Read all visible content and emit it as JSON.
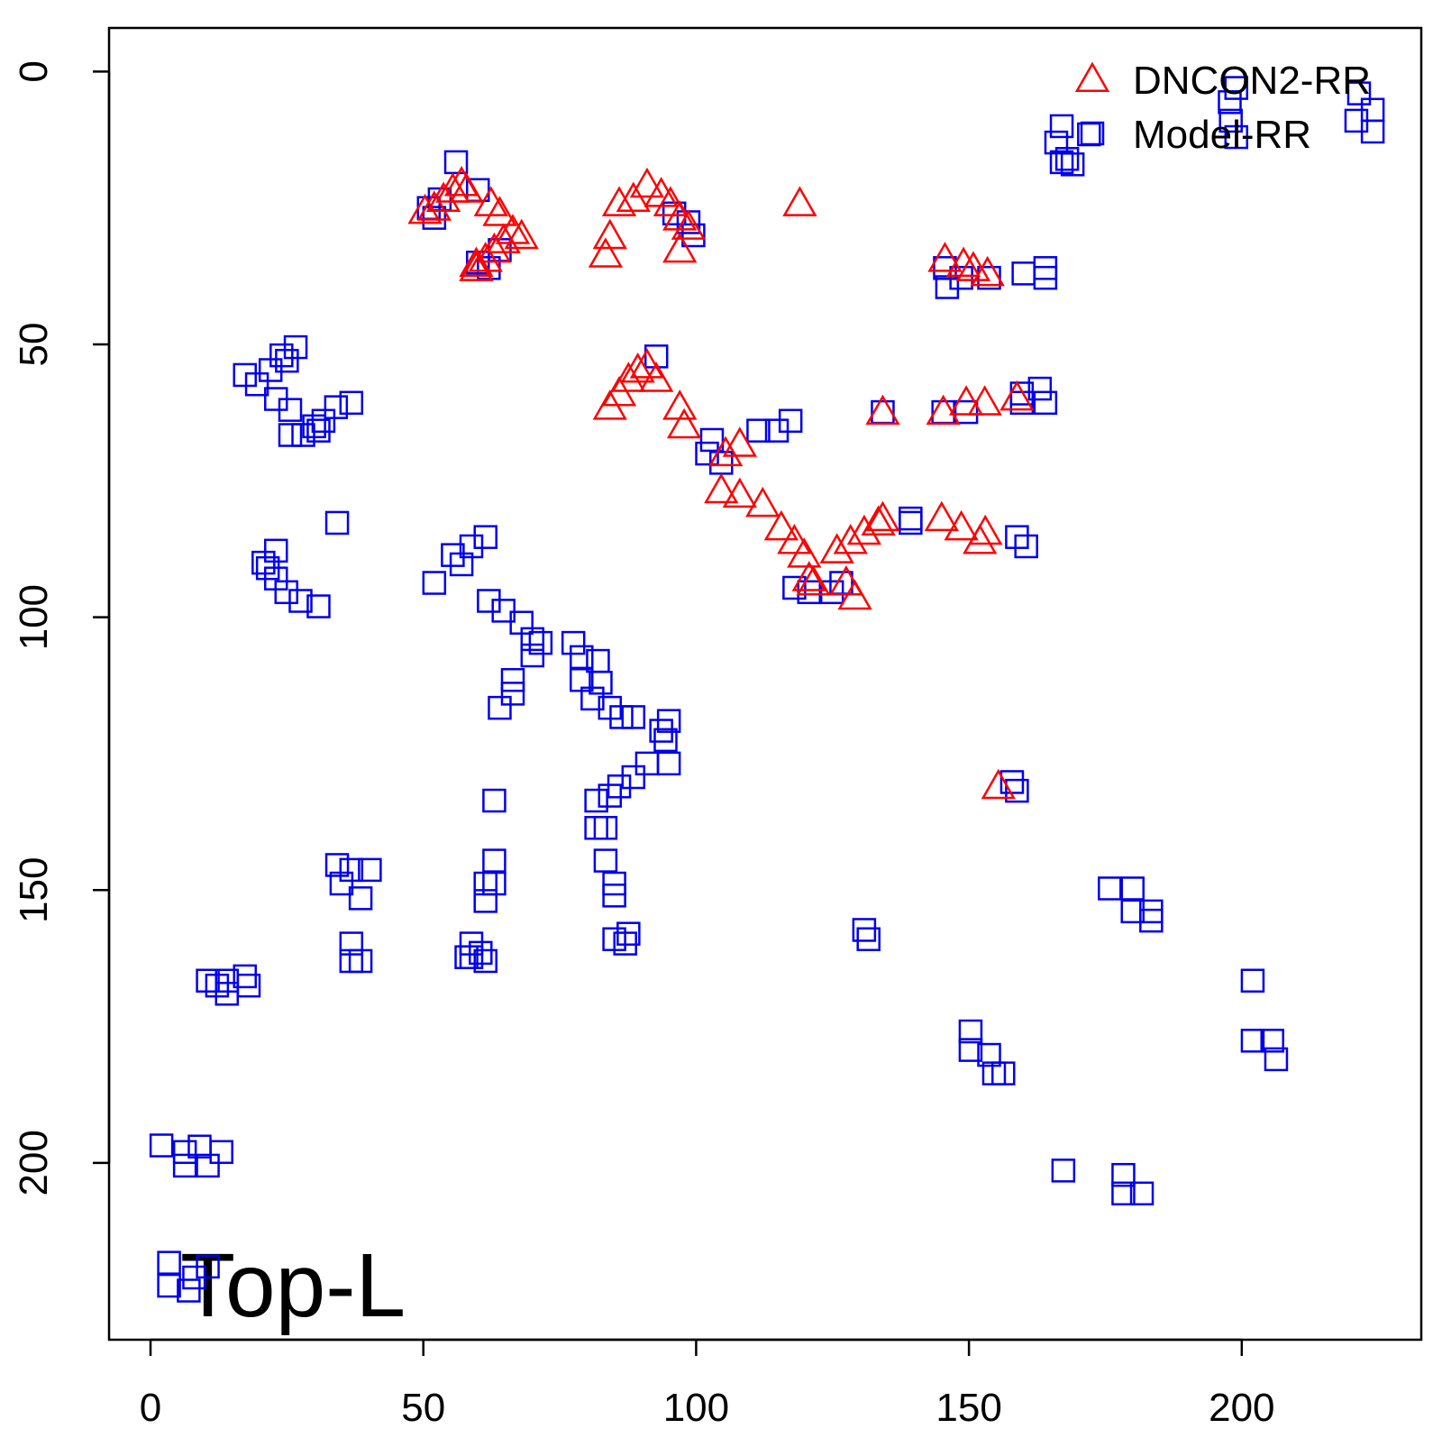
{
  "chart_data": {
    "type": "scatter",
    "annotation": "Top-L",
    "xlim": [
      -7.6,
      232.9
    ],
    "ylim": [
      -8,
      232.4
    ],
    "y_reversed": true,
    "xticks": [
      0,
      50,
      100,
      150,
      200
    ],
    "yticks": [
      0,
      50,
      100,
      150,
      200
    ],
    "grid": false,
    "legend": "topright",
    "series": [
      {
        "name": "DNCON2-RR",
        "color": "#ff0000",
        "marker": "triangle",
        "x": [
          50.3,
          52,
          53.7,
          55.4,
          57,
          57.9,
          62.4,
          64,
          59.7,
          61.4,
          63,
          64.7,
          66.4,
          68,
          59.7,
          83.4,
          84.2,
          85.9,
          88.5,
          91,
          93.6,
          95.3,
          97,
          98.6,
          97,
          119,
          145.6,
          149,
          150.8,
          153.4,
          84.2,
          85.9,
          87.6,
          89.3,
          91,
          92.7,
          97,
          97.8,
          134.2,
          145.3,
          149.5,
          152.9,
          158.8,
          105.4,
          108,
          104.6,
          108,
          112.2,
          115.6,
          118,
          119.8,
          120.7,
          121.5,
          127.5,
          129.1,
          125.8,
          128.3,
          130.8,
          133.4,
          134.2,
          145,
          148.6,
          153,
          152,
          155.4
        ],
        "values": [
          25.6,
          25,
          23.4,
          21.7,
          20.5,
          21.7,
          24.2,
          26,
          35.3,
          34.4,
          32.7,
          31,
          29.3,
          30.2,
          36.1,
          33.6,
          30.2,
          24.2,
          23.4,
          20.8,
          22.5,
          24.2,
          26.8,
          28.5,
          32.7,
          24.2,
          34.4,
          35.3,
          36.1,
          37,
          61.5,
          59,
          56.4,
          54.7,
          53.9,
          56.4,
          61.5,
          64.9,
          62.4,
          62.4,
          60.7,
          60.7,
          59.8,
          70,
          68.3,
          76.8,
          77.6,
          79.3,
          83.6,
          86.1,
          88.6,
          92.9,
          93.7,
          93.7,
          96.3,
          87.8,
          86.1,
          84.4,
          82.7,
          81.9,
          81.9,
          83.6,
          84.4,
          86.1,
          131
        ]
      },
      {
        "name": "Model-RR",
        "color": "#0000ee",
        "marker": "square",
        "x": [
          197.8,
          198,
          199,
          221.5,
          224,
          221,
          224,
          199,
          167,
          166,
          168,
          169,
          172,
          167,
          51,
          53,
          56,
          60,
          52,
          60,
          62,
          64,
          98.6,
          99.5,
          96,
          145.6,
          146,
          148.6,
          153.7,
          160,
          164,
          164,
          17.3,
          19.5,
          22,
          24,
          26.6,
          25,
          23,
          25.6,
          30,
          25.6,
          31.7,
          34,
          36.8,
          28,
          30.8,
          34.2,
          21.5,
          23,
          24.9,
          27.5,
          30.8,
          23,
          20.7,
          52,
          55.4,
          58.8,
          61.4,
          57,
          62,
          64.7,
          68,
          70,
          71.5,
          70,
          66.4,
          66.4,
          64,
          77.5,
          79,
          79,
          82,
          82.5,
          81,
          84.2,
          86.3,
          88.5,
          93.6,
          95,
          94.4,
          95,
          91,
          88.5,
          85.9,
          84.2,
          81.7,
          81.7,
          83.4,
          63,
          83.4,
          85,
          85,
          85,
          87.6,
          87,
          34.2,
          36.8,
          40.2,
          35,
          38.5,
          36.8,
          36.8,
          38.5,
          63,
          63,
          61.4,
          61.4,
          58.8,
          58.8,
          60.5,
          61.4,
          57.9,
          10.5,
          14,
          17.3,
          18,
          14,
          12.2,
          2,
          6.3,
          9,
          10.5,
          13,
          6.3,
          3.4,
          3.4,
          7,
          10.5,
          8,
          92.7,
          111.4,
          114.8,
          117.3,
          102.9,
          102,
          104.6,
          139.3,
          139.3,
          158.8,
          160.5,
          134.2,
          145.3,
          149.5,
          159.7,
          163,
          164,
          159.7,
          126.6,
          120.7,
          124.9,
          118,
          157.9,
          158.8,
          130.8,
          131.6,
          175.8,
          180,
          180,
          183.4,
          183.4,
          202,
          202,
          205.6,
          206.3,
          150.3,
          150.3,
          153.7,
          154.6,
          156.3,
          167.3,
          178.3,
          178.3,
          181.7
        ],
        "values": [
          5.6,
          9,
          12,
          4,
          7,
          9,
          11,
          3,
          10,
          13,
          16,
          17,
          11.5,
          16.6,
          25,
          23.4,
          16.6,
          21.7,
          26.8,
          35,
          36,
          32.7,
          27.6,
          30,
          26,
          36,
          39.5,
          37.8,
          37.8,
          37,
          37.8,
          36,
          55.6,
          57.3,
          54.7,
          52,
          50.5,
          53,
          60,
          62,
          65,
          66.6,
          64,
          61.5,
          60.7,
          66.6,
          65.8,
          82.7,
          91,
          92.9,
          95.4,
          97,
          98,
          87.8,
          90,
          93.7,
          88.6,
          87,
          85.3,
          90.3,
          97,
          98.8,
          101,
          104,
          104.7,
          107,
          111.5,
          114,
          116.6,
          104.7,
          107.3,
          111.5,
          108,
          112,
          114.9,
          116.6,
          118.3,
          118.3,
          120.8,
          119,
          122.5,
          126.8,
          126.8,
          129.3,
          131,
          132.7,
          133.6,
          138.6,
          138.6,
          133.6,
          144.6,
          148.8,
          151,
          159,
          158,
          159.8,
          145.4,
          146.3,
          146.3,
          148.8,
          151.5,
          159.8,
          163,
          163,
          144.6,
          148.8,
          148.8,
          152,
          159.8,
          162.3,
          161.5,
          163,
          162.3,
          166.6,
          166.6,
          165.8,
          167.5,
          169,
          167.5,
          196.8,
          198,
          197,
          200.5,
          198,
          200.5,
          218.3,
          222.5,
          223.4,
          219,
          221,
          52.2,
          65.8,
          65.8,
          64,
          67.5,
          70,
          71.7,
          81.9,
          82.7,
          85.3,
          87,
          62.4,
          62.4,
          62.4,
          59,
          58.1,
          60.7,
          60.7,
          93.7,
          95.4,
          95.4,
          94.6,
          130.2,
          131.8,
          157.3,
          159,
          149.7,
          149.7,
          153.9,
          153.9,
          155.6,
          166.6,
          177.6,
          177.6,
          181,
          175.9,
          179.3,
          180.2,
          183.6,
          183.6,
          201.4,
          202.2,
          205.6,
          205.6
        ]
      }
    ]
  }
}
